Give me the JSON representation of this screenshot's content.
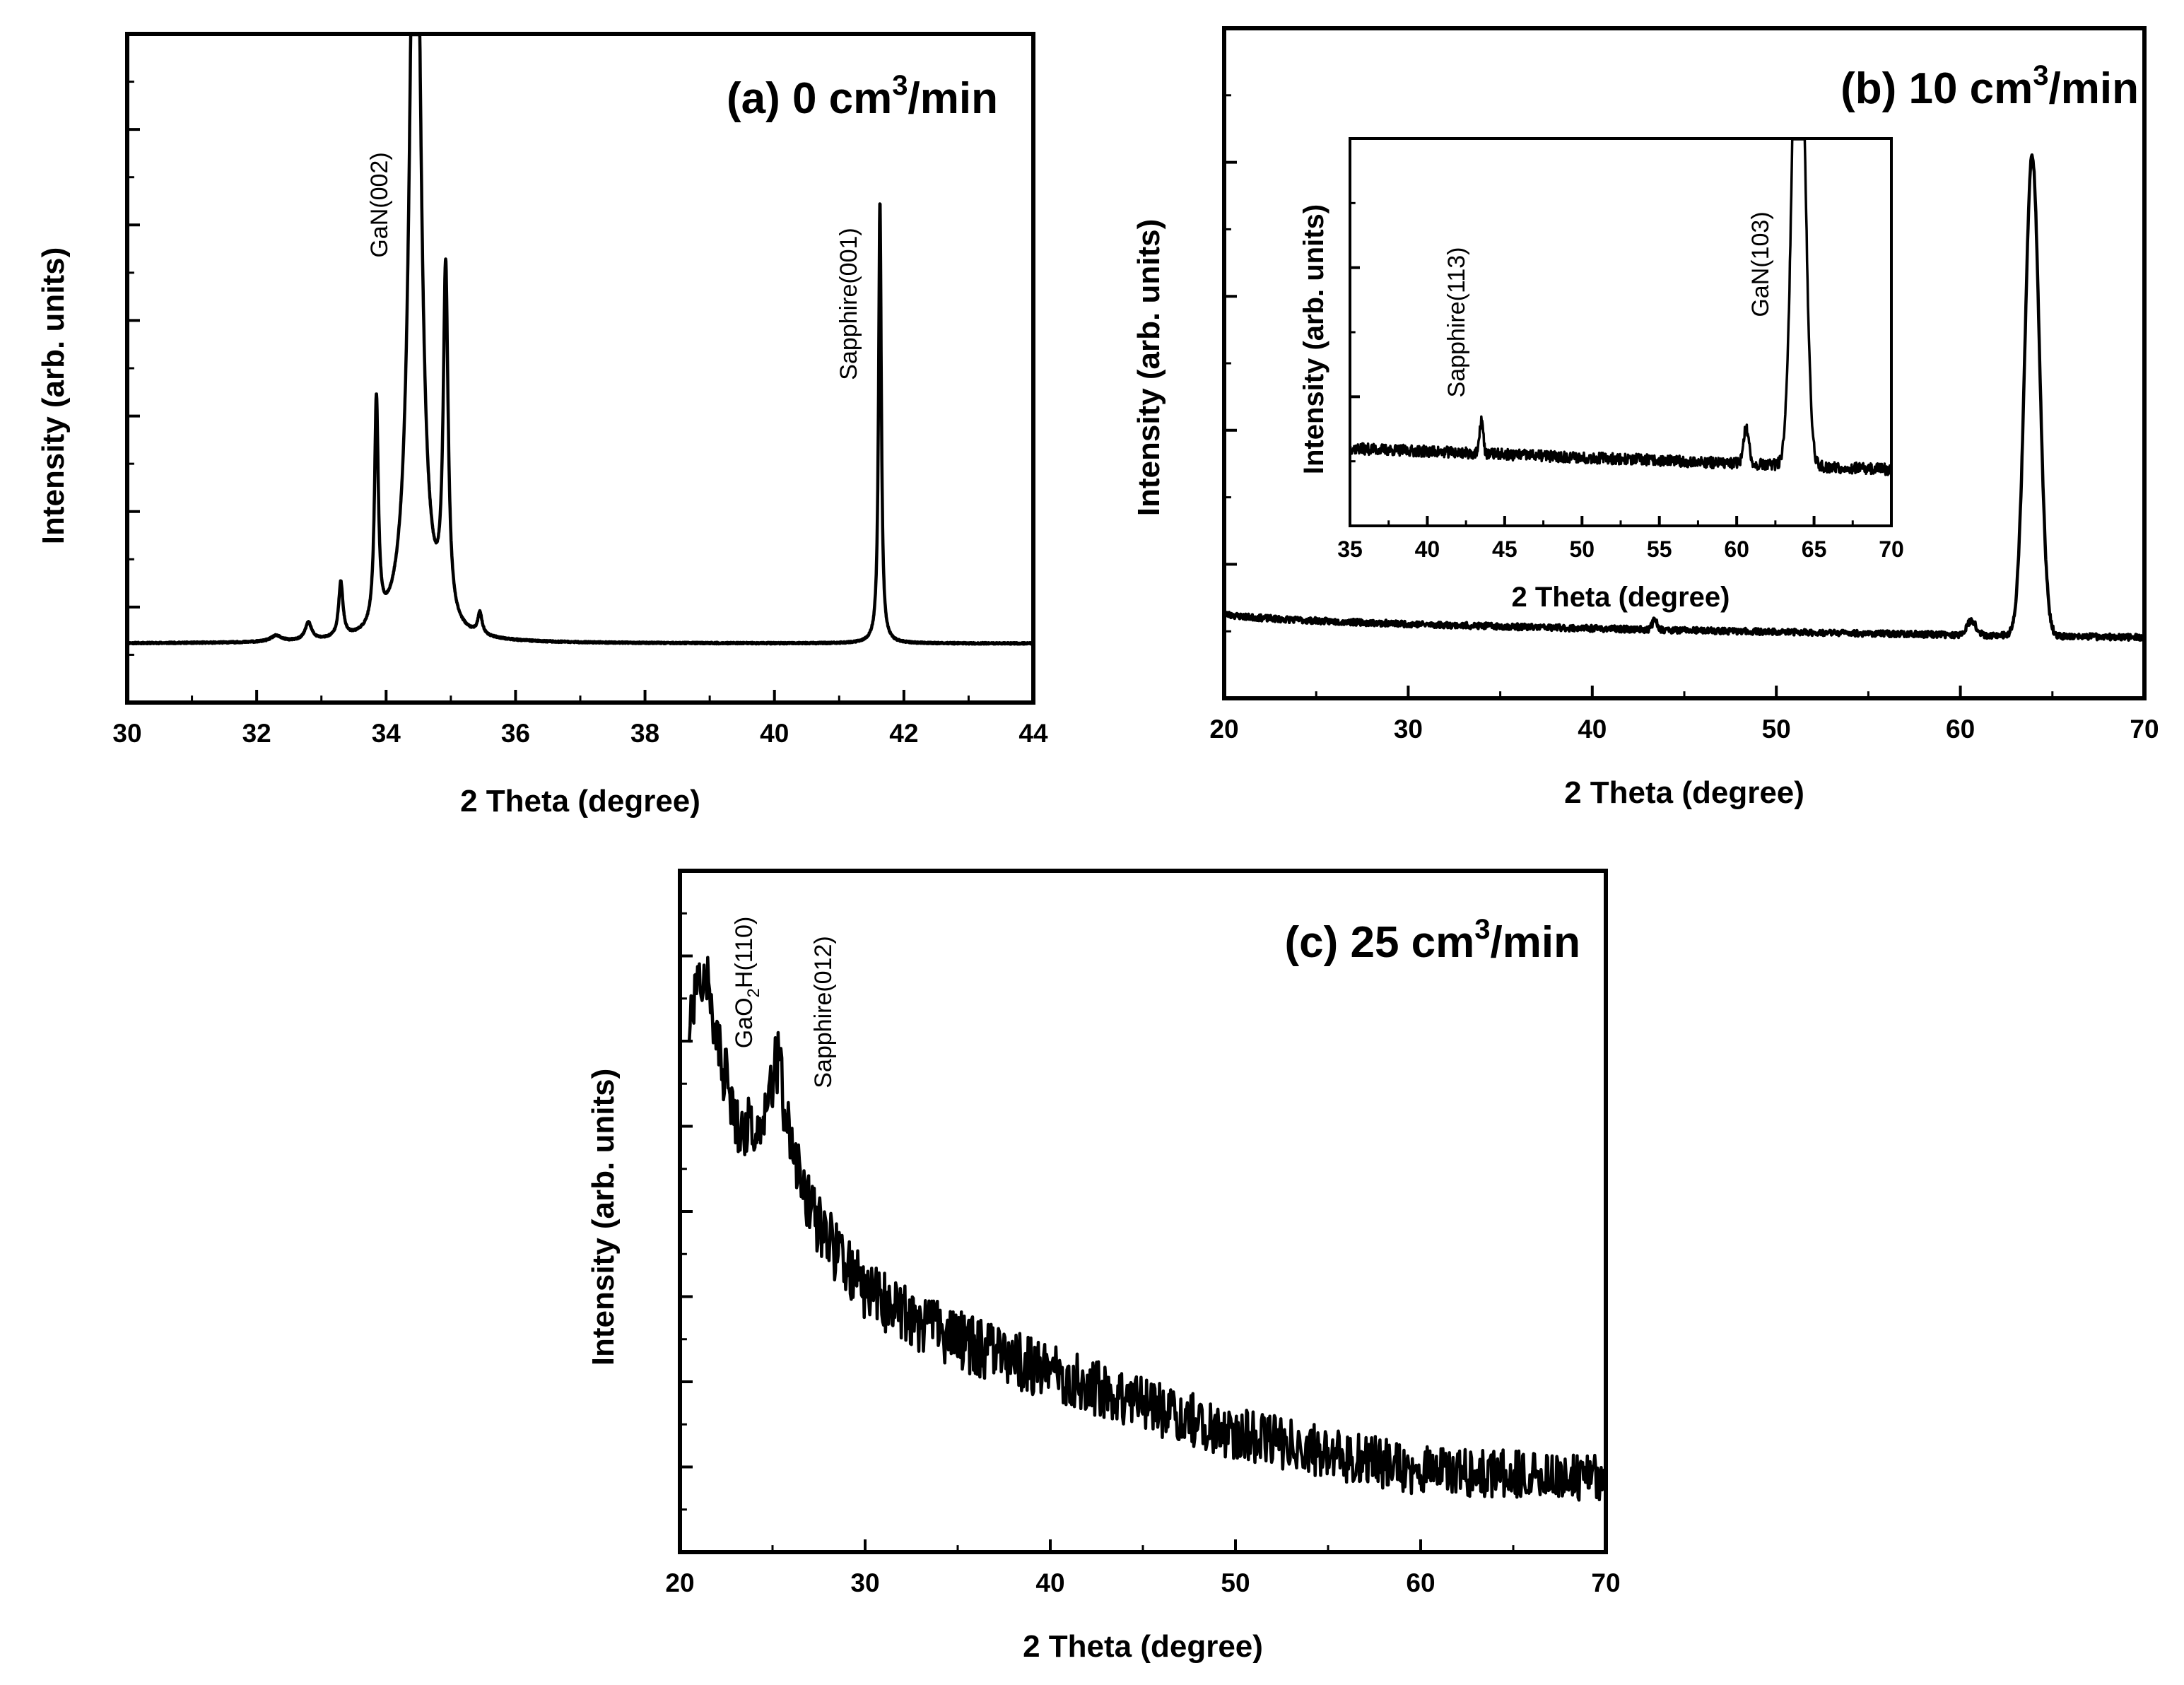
{
  "chart_data": [
    {
      "type": "line",
      "title": "(a) 0 cm³/min",
      "title_parts": {
        "lead": "(a) 0 cm",
        "sup": "3",
        "tail": "/min"
      },
      "xlabel": "2 Theta (degree)",
      "ylabel": "Intensity (arb. units)",
      "xlim": [
        30,
        44
      ],
      "ylim": [
        -0.3,
        3.1
      ],
      "xticks": [
        "30",
        "32",
        "34",
        "36",
        "38",
        "40",
        "42",
        "44"
      ],
      "baseline": 0.0,
      "peaks": [
        {
          "x": 32.3,
          "h": 0.03,
          "w": 0.1
        },
        {
          "x": 32.8,
          "h": 0.09,
          "w": 0.06
        },
        {
          "x": 33.3,
          "h": 0.28,
          "w": 0.04
        },
        {
          "x": 33.85,
          "h": 1.16,
          "w": 0.035
        },
        {
          "x": 34.45,
          "h": 5.0,
          "w": 0.09
        },
        {
          "x": 34.92,
          "h": 1.78,
          "w": 0.045
        },
        {
          "x": 35.45,
          "h": 0.11,
          "w": 0.04
        },
        {
          "x": 41.63,
          "h": 2.25,
          "w": 0.025
        }
      ],
      "annotations": [
        {
          "text": "GaN(002)",
          "x": 34.0
        },
        {
          "text": "Sapphire(001)",
          "x": 41.45
        }
      ]
    },
    {
      "type": "line",
      "title": "(b) 10 cm³/min",
      "title_parts": {
        "lead": "(b) 10 cm",
        "sup": "3",
        "tail": "/min"
      },
      "xlabel": "2 Theta (degree)",
      "ylabel": "Intensity (arb. units)",
      "xlim": [
        20,
        70
      ],
      "ylim": [
        -0.5,
        5.0
      ],
      "xticks": [
        "20",
        "30",
        "40",
        "50",
        "60",
        "70"
      ],
      "baseline_start": 0.2,
      "baseline_end": 0.0,
      "peaks": [
        {
          "x": 43.4,
          "h": 0.08,
          "w": 0.2
        },
        {
          "x": 60.6,
          "h": 0.12,
          "w": 0.35
        },
        {
          "x": 63.9,
          "h": 3.95,
          "w": 0.55
        }
      ],
      "inset": {
        "type": "line",
        "xlabel": "2 Theta (degree)",
        "ylabel": "Intensity (arb. units)",
        "xlim": [
          35,
          70
        ],
        "ylim": [
          -0.5,
          5.0
        ],
        "xticks": [
          "35",
          "40",
          "45",
          "50",
          "55",
          "60",
          "65",
          "70"
        ],
        "baseline_start": 0.6,
        "baseline_end": 0.3,
        "peaks": [
          {
            "x": 43.5,
            "h": 0.5,
            "w": 0.15
          },
          {
            "x": 60.6,
            "h": 0.5,
            "w": 0.25
          },
          {
            "x": 64.0,
            "h": 8.0,
            "w": 0.55
          }
        ],
        "annotations": [
          {
            "text": "Sapphire(113)",
            "x": 42.9
          },
          {
            "text": "GaN(103)",
            "x": 62.2
          }
        ]
      }
    },
    {
      "type": "line",
      "title": "(c) 25 cm³/min",
      "title_parts": {
        "lead": "(c) 25 cm",
        "sup": "3",
        "tail": "/min"
      },
      "xlabel": "2 Theta (degree)",
      "ylabel": "Intensity (arb. units)",
      "xlim": [
        20,
        70
      ],
      "ylim": [
        0,
        8.3
      ],
      "xticks": [
        "20",
        "30",
        "40",
        "50",
        "60",
        "70"
      ],
      "points": [
        [
          20.5,
          6.4
        ],
        [
          21.3,
          7.2
        ],
        [
          22.0,
          6.2
        ],
        [
          23.0,
          5.3
        ],
        [
          24.0,
          5.1
        ],
        [
          25.3,
          6.0
        ],
        [
          26.0,
          4.9
        ],
        [
          27.0,
          4.2
        ],
        [
          28.0,
          3.8
        ],
        [
          30.0,
          3.2
        ],
        [
          33.0,
          2.8
        ],
        [
          36.0,
          2.5
        ],
        [
          40.0,
          2.2
        ],
        [
          45.0,
          1.8
        ],
        [
          50.0,
          1.45
        ],
        [
          55.0,
          1.2
        ],
        [
          60.0,
          1.0
        ],
        [
          65.0,
          0.95
        ],
        [
          70.0,
          0.9
        ]
      ],
      "annotations": [
        {
          "text": "GaO",
          "sub": "2",
          "tail": "H(110)",
          "x": 22.8
        },
        {
          "text": "Sapphire(012)",
          "x": 27.4
        }
      ]
    }
  ]
}
